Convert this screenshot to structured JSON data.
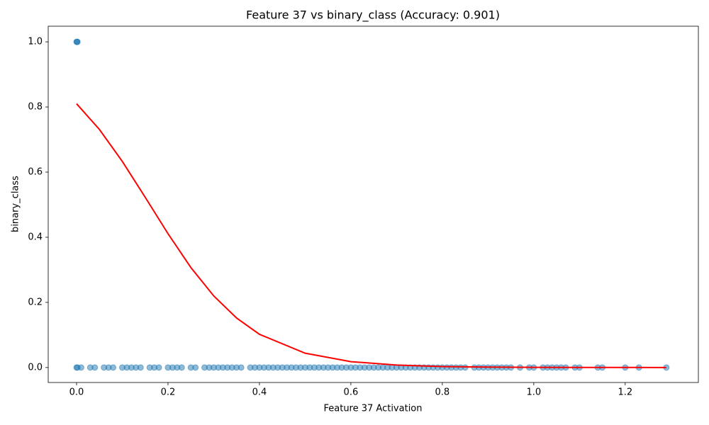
{
  "chart_data": {
    "type": "scatter",
    "title": "Feature 37 vs binary_class (Accuracy: 0.901)",
    "xlabel": "Feature 37 Activation",
    "ylabel": "binary_class",
    "xlim": [
      -0.062,
      1.36
    ],
    "ylim": [
      -0.046,
      1.048
    ],
    "xticks": [
      {
        "value": 0,
        "label": "0.0"
      },
      0.2,
      0.4,
      0.6,
      0.8,
      {
        "value": 1,
        "label": "1.0"
      },
      1.2
    ],
    "yticks": [
      {
        "value": 0,
        "label": "0.0"
      },
      0.2,
      0.4,
      0.6,
      0.8,
      {
        "value": 1,
        "label": "1.0"
      }
    ],
    "series": [
      {
        "type": "scatter",
        "color": "#1f77b4",
        "x": [
          0,
          0.001,
          0.002
        ],
        "y": [
          1,
          1,
          1
        ]
      },
      {
        "type": "scatter",
        "color": "#1f77b4",
        "x": [
          0,
          0.002,
          0.01,
          0.03,
          0.04,
          0.06,
          0.07,
          0.08,
          0.1,
          0.11,
          0.12,
          0.13,
          0.14,
          0.16,
          0.17,
          0.18,
          0.2,
          0.21,
          0.22,
          0.23,
          0.25,
          0.26,
          0.28,
          0.29,
          0.3,
          0.31,
          0.32,
          0.33,
          0.34,
          0.35,
          0.36,
          0.38,
          0.39,
          0.4,
          0.41,
          0.42,
          0.43,
          0.44,
          0.45,
          0.46,
          0.47,
          0.48,
          0.49,
          0.5,
          0.51,
          0.52,
          0.53,
          0.54,
          0.55,
          0.56,
          0.57,
          0.58,
          0.59,
          0.6,
          0.61,
          0.62,
          0.63,
          0.64,
          0.65,
          0.66,
          0.67,
          0.68,
          0.69,
          0.7,
          0.71,
          0.72,
          0.73,
          0.74,
          0.75,
          0.76,
          0.77,
          0.78,
          0.79,
          0.8,
          0.81,
          0.82,
          0.83,
          0.84,
          0.85,
          0.87,
          0.88,
          0.89,
          0.9,
          0.91,
          0.92,
          0.93,
          0.94,
          0.95,
          0.97,
          0.99,
          1.0,
          1.02,
          1.03,
          1.04,
          1.05,
          1.06,
          1.07,
          1.09,
          1.1,
          1.14,
          1.15,
          1.2,
          1.23,
          1.29
        ],
        "y": [
          0,
          0,
          0,
          0,
          0,
          0,
          0,
          0,
          0,
          0,
          0,
          0,
          0,
          0,
          0,
          0,
          0,
          0,
          0,
          0,
          0,
          0,
          0,
          0,
          0,
          0,
          0,
          0,
          0,
          0,
          0,
          0,
          0,
          0,
          0,
          0,
          0,
          0,
          0,
          0,
          0,
          0,
          0,
          0,
          0,
          0,
          0,
          0,
          0,
          0,
          0,
          0,
          0,
          0,
          0,
          0,
          0,
          0,
          0,
          0,
          0,
          0,
          0,
          0,
          0,
          0,
          0,
          0,
          0,
          0,
          0,
          0,
          0,
          0,
          0,
          0,
          0,
          0,
          0,
          0,
          0,
          0,
          0,
          0,
          0,
          0,
          0,
          0,
          0,
          0,
          0,
          0,
          0,
          0,
          0,
          0,
          0,
          0,
          0,
          0,
          0,
          0,
          0,
          0
        ]
      },
      {
        "type": "line",
        "color": "#ff0000",
        "x": [
          0,
          0.05,
          0.1,
          0.15,
          0.2,
          0.25,
          0.3,
          0.35,
          0.4,
          0.5,
          0.6,
          0.7,
          0.8,
          0.9,
          1.0,
          1.1,
          1.29
        ],
        "y": [
          0.81,
          0.731,
          0.633,
          0.523,
          0.411,
          0.307,
          0.22,
          0.152,
          0.102,
          0.044,
          0.018,
          0.0075,
          0.003,
          0.0012,
          0.0005,
          0.0002,
          3e-05
        ]
      }
    ]
  }
}
